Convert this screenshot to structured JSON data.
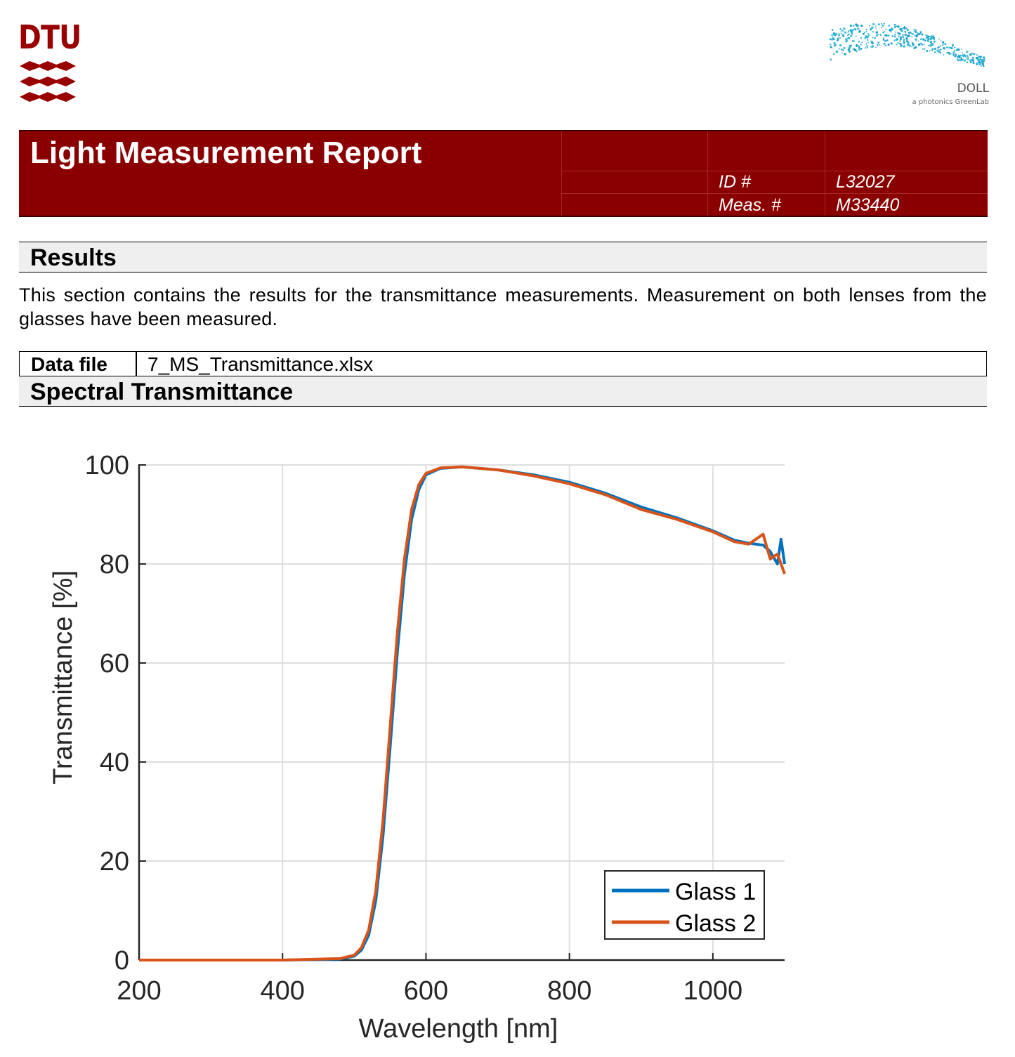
{
  "logos": {
    "dtu_text": "DTU",
    "doll_name": "DOLL",
    "doll_sub": "a photonics GreenLab"
  },
  "header": {
    "title": "Light Measurement Report",
    "id_label": "ID #",
    "id_value": "L32027",
    "meas_label": "Meas. #",
    "meas_value": "M33440"
  },
  "results": {
    "heading": "Results",
    "text": "This section contains the results for the transmittance measurements. Measurement on both lenses from the glasses have been measured."
  },
  "data_file": {
    "label": "Data file",
    "value": "7_MS_Transmittance.xlsx"
  },
  "spectral": {
    "heading": "Spectral Transmittance"
  },
  "colors": {
    "brand_red": "#8a0000",
    "glass1": "#0072bd",
    "glass2": "#d95319"
  },
  "chart_data": {
    "type": "line",
    "xlabel": "Wavelength [nm]",
    "ylabel": "Transmittance [%]",
    "xlim": [
      200,
      1100
    ],
    "ylim": [
      0,
      100
    ],
    "xticks": [
      200,
      400,
      600,
      800,
      1000
    ],
    "yticks": [
      0,
      20,
      40,
      60,
      80,
      100
    ],
    "grid": true,
    "legend_position": "bottom-right",
    "series": [
      {
        "name": "Glass 1",
        "x": [
          200,
          300,
          400,
          480,
          500,
          510,
          520,
          530,
          540,
          550,
          560,
          570,
          580,
          590,
          600,
          620,
          650,
          700,
          750,
          800,
          850,
          900,
          950,
          1000,
          1030,
          1050,
          1070,
          1080,
          1090,
          1095,
          1100
        ],
        "y": [
          0,
          0,
          0,
          0.2,
          0.8,
          2,
          5,
          12,
          25,
          43,
          62,
          78,
          89,
          95,
          98,
          99.3,
          99.6,
          99,
          98,
          96.5,
          94.3,
          91.5,
          89.3,
          86.7,
          84.8,
          84.2,
          83.8,
          82.5,
          80,
          85,
          80
        ]
      },
      {
        "name": "Glass 2",
        "x": [
          200,
          300,
          400,
          480,
          500,
          510,
          520,
          530,
          540,
          550,
          560,
          570,
          580,
          590,
          600,
          620,
          650,
          700,
          750,
          800,
          850,
          900,
          950,
          1000,
          1030,
          1050,
          1070,
          1080,
          1090,
          1095,
          1100
        ],
        "y": [
          0,
          0,
          0,
          0.3,
          1,
          2.5,
          6,
          14,
          28,
          47,
          66,
          81,
          91,
          96,
          98.3,
          99.4,
          99.6,
          99,
          97.8,
          96.2,
          94,
          91,
          89,
          86.5,
          84.5,
          84,
          86,
          81,
          82,
          80,
          78
        ]
      }
    ]
  }
}
